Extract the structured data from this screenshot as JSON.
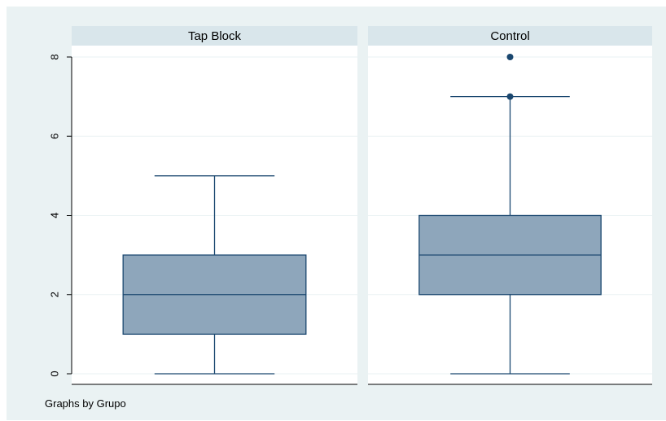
{
  "chart_data": {
    "type": "box",
    "note": "Graphs by Grupo",
    "yticks": [
      0,
      2,
      4,
      6,
      8
    ],
    "ylim": [
      -0.1,
      8.4
    ],
    "grid": true,
    "panels": [
      {
        "title": "Tap Block",
        "whisker_low": 0,
        "q1": 1,
        "median": 2,
        "q3": 3,
        "whisker_high": 5,
        "outliers": []
      },
      {
        "title": "Control",
        "whisker_low": 0,
        "q1": 2,
        "median": 3,
        "q3": 4,
        "whisker_high": 7,
        "outliers": [
          7,
          8
        ]
      }
    ],
    "colors": {
      "background": "#eaf2f3",
      "panel_strip": "#d9e6eb",
      "plot_bg": "#ffffff",
      "box_fill": "#8ea6bb",
      "line": "#1a476f",
      "grid": "#eaf2f3"
    }
  }
}
